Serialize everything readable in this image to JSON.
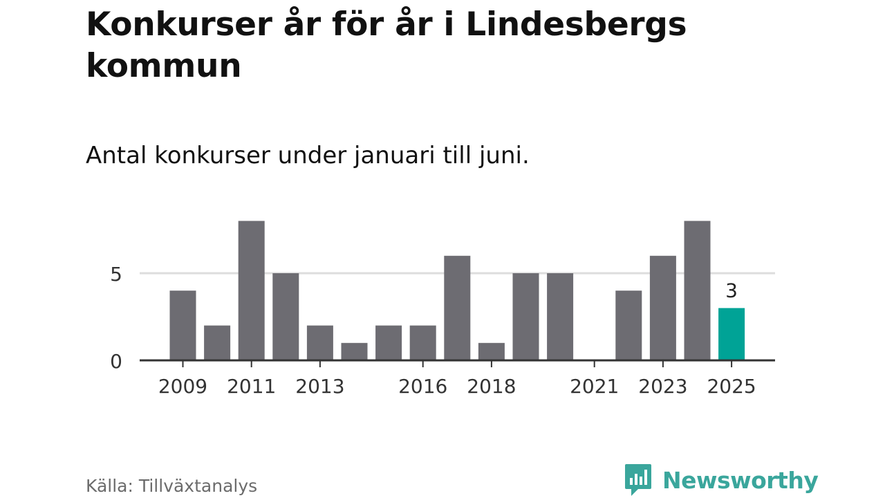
{
  "header": {
    "title": "Konkurser år för år i Lindesbergs kommun",
    "subtitle": "Antal konkurser under januari till juni."
  },
  "footer": {
    "source": "Källa: Tillväxtanalys",
    "brand": "Newsworthy"
  },
  "colors": {
    "bar": "#6d6c72",
    "highlight": "#00a396",
    "gridline": "#dddddd",
    "axis": "#333333",
    "brand": "#3aa69c"
  },
  "chart_data": {
    "type": "bar",
    "categories": [
      "2009",
      "2010",
      "2011",
      "2012",
      "2013",
      "2014",
      "2015",
      "2016",
      "2017",
      "2018",
      "2019",
      "2020",
      "2021",
      "2022",
      "2023",
      "2024",
      "2025"
    ],
    "values": [
      4,
      2,
      8,
      5,
      2,
      1,
      2,
      2,
      6,
      1,
      5,
      5,
      0,
      4,
      6,
      8,
      3
    ],
    "x_tick_labels": [
      "2009",
      "2011",
      "2013",
      "2016",
      "2018",
      "2021",
      "2023",
      "2025"
    ],
    "y_ticks": [
      0,
      5
    ],
    "ylim": [
      0,
      8
    ],
    "highlight_category": "2025",
    "data_labels": [
      {
        "category": "2025",
        "text": "3"
      }
    ],
    "grid": true,
    "title": "Konkurser år för år i Lindesbergs kommun",
    "subtitle": "Antal konkurser under januari till juni.",
    "xlabel": "",
    "ylabel": ""
  }
}
